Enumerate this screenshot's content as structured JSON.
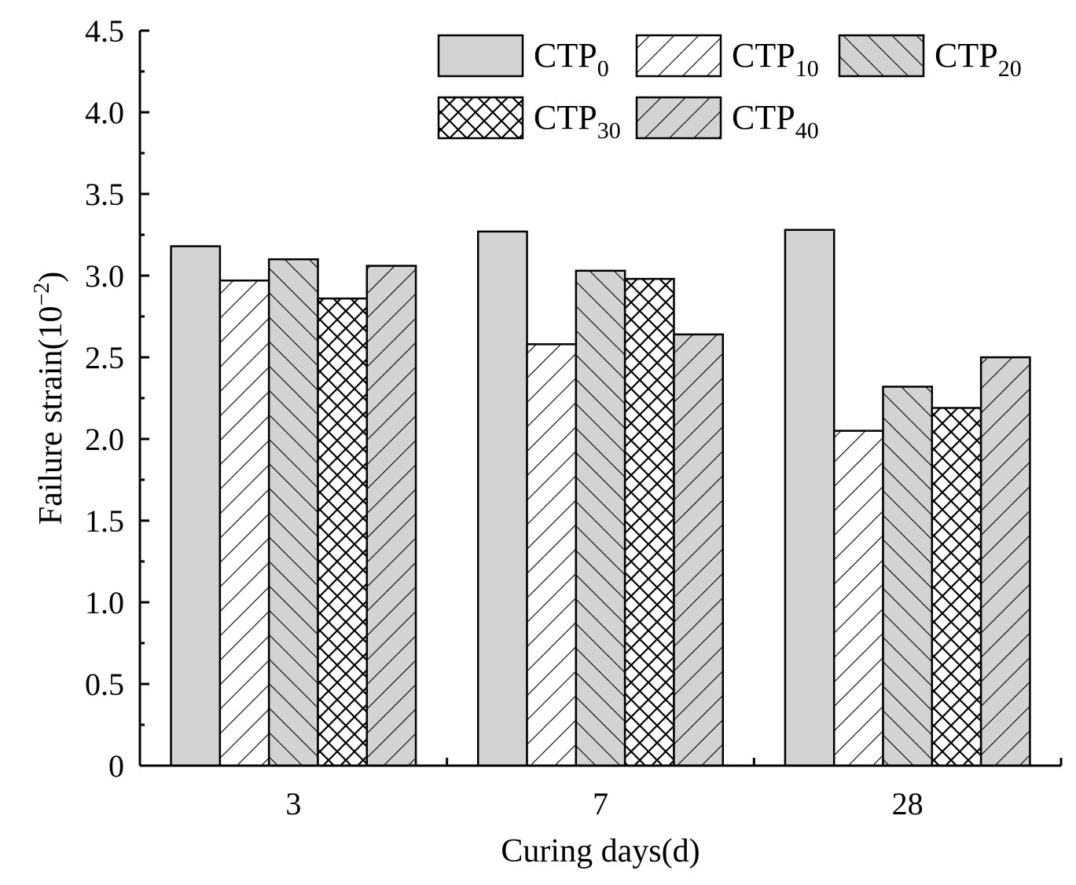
{
  "chart_data": {
    "type": "bar",
    "title": "",
    "xlabel": "Curing days(d)",
    "ylabel": {
      "base": "Failure strain(10",
      "exp": "−2",
      "close": ")"
    },
    "categories": [
      "3",
      "7",
      "28"
    ],
    "ylim": [
      0,
      4.5
    ],
    "yticks": [
      "0",
      "0.5",
      "1.0",
      "1.5",
      "2.0",
      "2.5",
      "3.0",
      "3.5",
      "4.0",
      "4.5"
    ],
    "grid": false,
    "legend_position": "top-right",
    "series": [
      {
        "name": "CTP0",
        "label_base": "CTP",
        "label_sub": "0",
        "pattern": "solid-gray",
        "values": [
          3.18,
          3.27,
          3.28
        ]
      },
      {
        "name": "CTP10",
        "label_base": "CTP",
        "label_sub": "10",
        "pattern": "forward-hatch-white",
        "values": [
          2.97,
          2.58,
          2.05
        ]
      },
      {
        "name": "CTP20",
        "label_base": "CTP",
        "label_sub": "20",
        "pattern": "back-hatch-gray",
        "values": [
          3.1,
          3.03,
          2.32
        ]
      },
      {
        "name": "CTP30",
        "label_base": "CTP",
        "label_sub": "30",
        "pattern": "crosshatch-white",
        "values": [
          2.86,
          2.98,
          2.19
        ]
      },
      {
        "name": "CTP40",
        "label_base": "CTP",
        "label_sub": "40",
        "pattern": "forward-hatch-gray",
        "values": [
          3.06,
          2.64,
          2.5
        ]
      }
    ]
  }
}
